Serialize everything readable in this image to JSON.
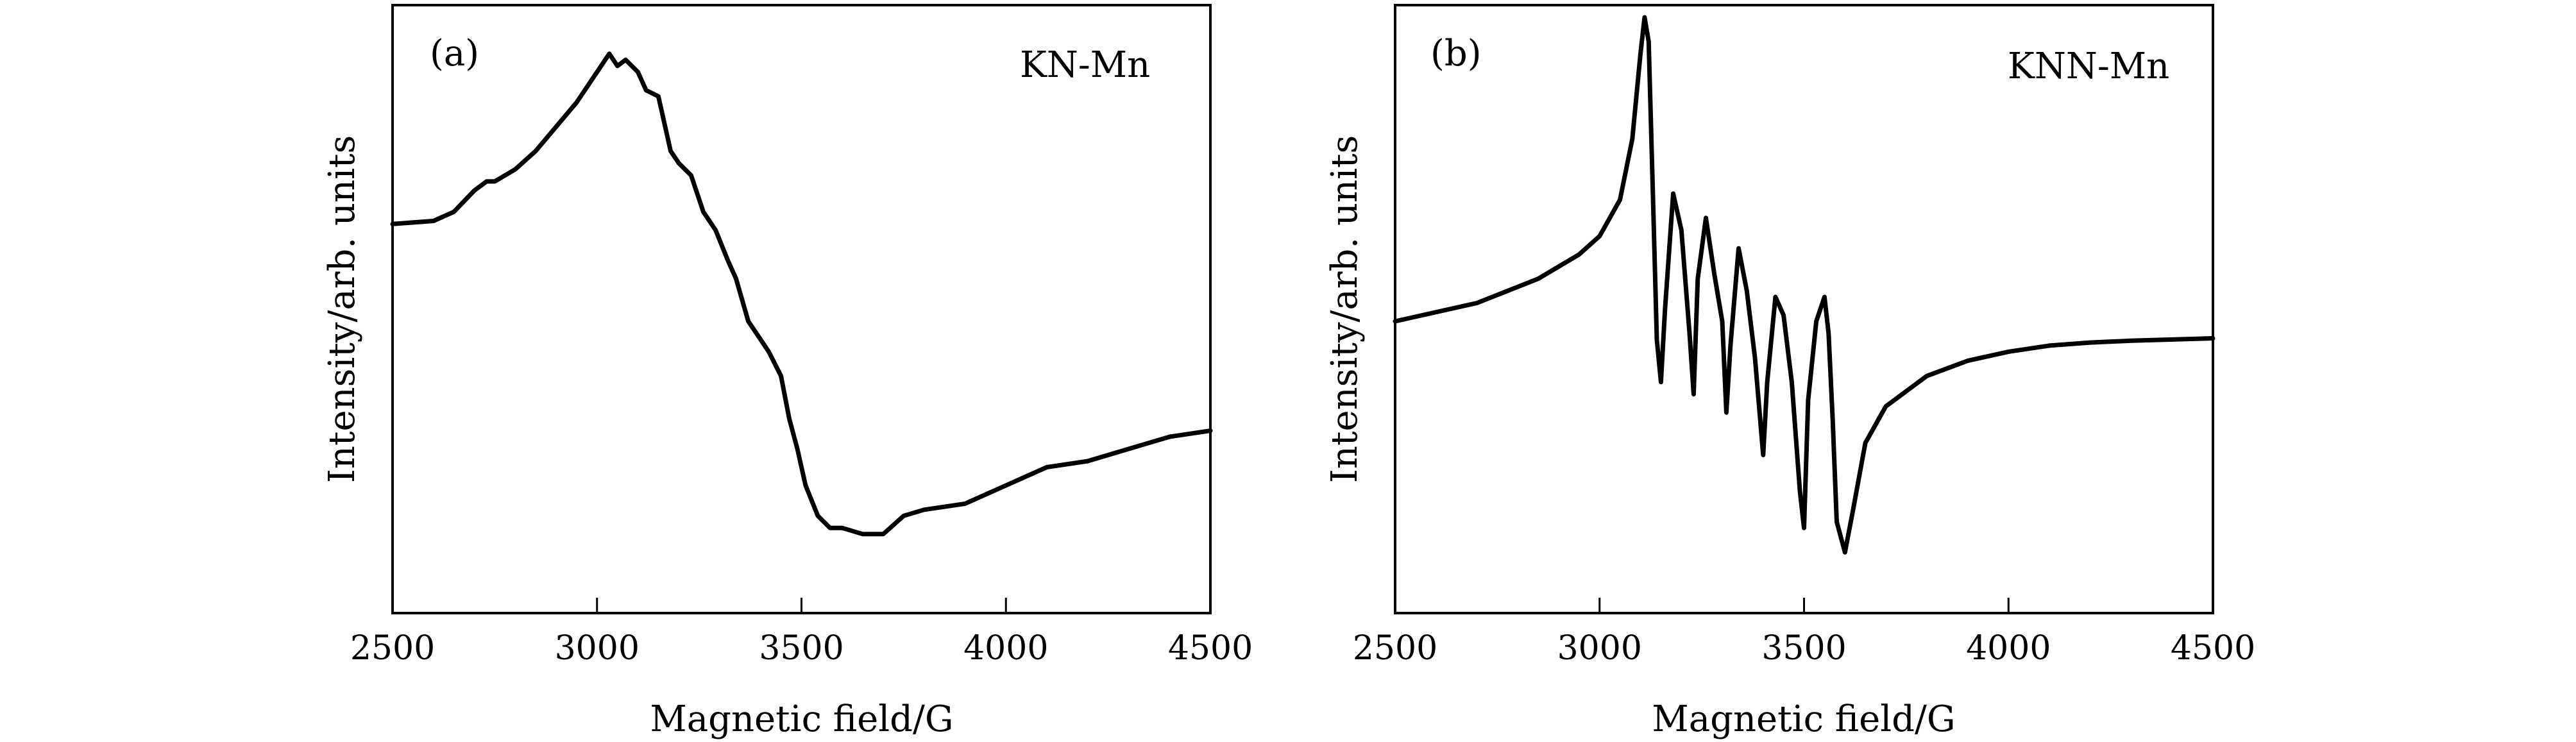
{
  "chart_data": [
    {
      "type": "line",
      "panel_label": "(a)",
      "annotation": "KN-Mn",
      "xlabel": "Magnetic field/G",
      "ylabel": "Intensity/arb. units",
      "xlim": [
        2500,
        4500
      ],
      "ylim": [
        0,
        1
      ],
      "xticks": [
        "2500",
        "3000",
        "3500",
        "4000",
        "4500"
      ],
      "y_ticks_labeled": false,
      "series": [
        {
          "name": "KN-Mn",
          "x": [
            2500,
            2600,
            2650,
            2700,
            2730,
            2750,
            2800,
            2850,
            2900,
            2950,
            3000,
            3030,
            3050,
            3070,
            3100,
            3120,
            3150,
            3180,
            3200,
            3230,
            3260,
            3290,
            3320,
            3340,
            3370,
            3400,
            3420,
            3450,
            3470,
            3490,
            3510,
            3540,
            3570,
            3600,
            3650,
            3700,
            3750,
            3800,
            3900,
            4000,
            4100,
            4200,
            4300,
            4400,
            4500
          ],
          "y": [
            0.64,
            0.645,
            0.66,
            0.695,
            0.71,
            0.71,
            0.73,
            0.76,
            0.8,
            0.84,
            0.89,
            0.92,
            0.9,
            0.91,
            0.89,
            0.86,
            0.85,
            0.76,
            0.74,
            0.72,
            0.66,
            0.63,
            0.58,
            0.55,
            0.48,
            0.45,
            0.43,
            0.39,
            0.32,
            0.27,
            0.21,
            0.16,
            0.14,
            0.14,
            0.13,
            0.13,
            0.16,
            0.17,
            0.18,
            0.21,
            0.24,
            0.25,
            0.27,
            0.29,
            0.3
          ]
        }
      ]
    },
    {
      "type": "line",
      "panel_label": "(b)",
      "annotation": "KNN-Mn",
      "xlabel": "Magnetic field/G",
      "ylabel": "Intensity/arb. units",
      "xlim": [
        2500,
        4500
      ],
      "ylim": [
        0,
        1
      ],
      "xticks": [
        "2500",
        "3000",
        "3500",
        "4000",
        "4500"
      ],
      "y_ticks_labeled": false,
      "series": [
        {
          "name": "KNN-Mn",
          "x": [
            2500,
            2700,
            2850,
            2950,
            3000,
            3050,
            3080,
            3100,
            3110,
            3120,
            3130,
            3140,
            3150,
            3160,
            3180,
            3200,
            3220,
            3230,
            3240,
            3260,
            3280,
            3300,
            3310,
            3320,
            3340,
            3360,
            3380,
            3400,
            3410,
            3430,
            3450,
            3470,
            3490,
            3500,
            3510,
            3530,
            3550,
            3560,
            3570,
            3580,
            3600,
            3620,
            3650,
            3700,
            3800,
            3900,
            4000,
            4100,
            4200,
            4300,
            4400,
            4500
          ],
          "y": [
            0.48,
            0.51,
            0.55,
            0.59,
            0.62,
            0.68,
            0.78,
            0.92,
            0.98,
            0.94,
            0.7,
            0.45,
            0.38,
            0.5,
            0.69,
            0.63,
            0.46,
            0.36,
            0.55,
            0.65,
            0.56,
            0.48,
            0.33,
            0.44,
            0.6,
            0.53,
            0.42,
            0.26,
            0.38,
            0.52,
            0.49,
            0.38,
            0.2,
            0.14,
            0.35,
            0.48,
            0.52,
            0.46,
            0.32,
            0.15,
            0.1,
            0.17,
            0.28,
            0.34,
            0.39,
            0.415,
            0.43,
            0.44,
            0.445,
            0.448,
            0.45,
            0.452
          ]
        }
      ]
    }
  ]
}
